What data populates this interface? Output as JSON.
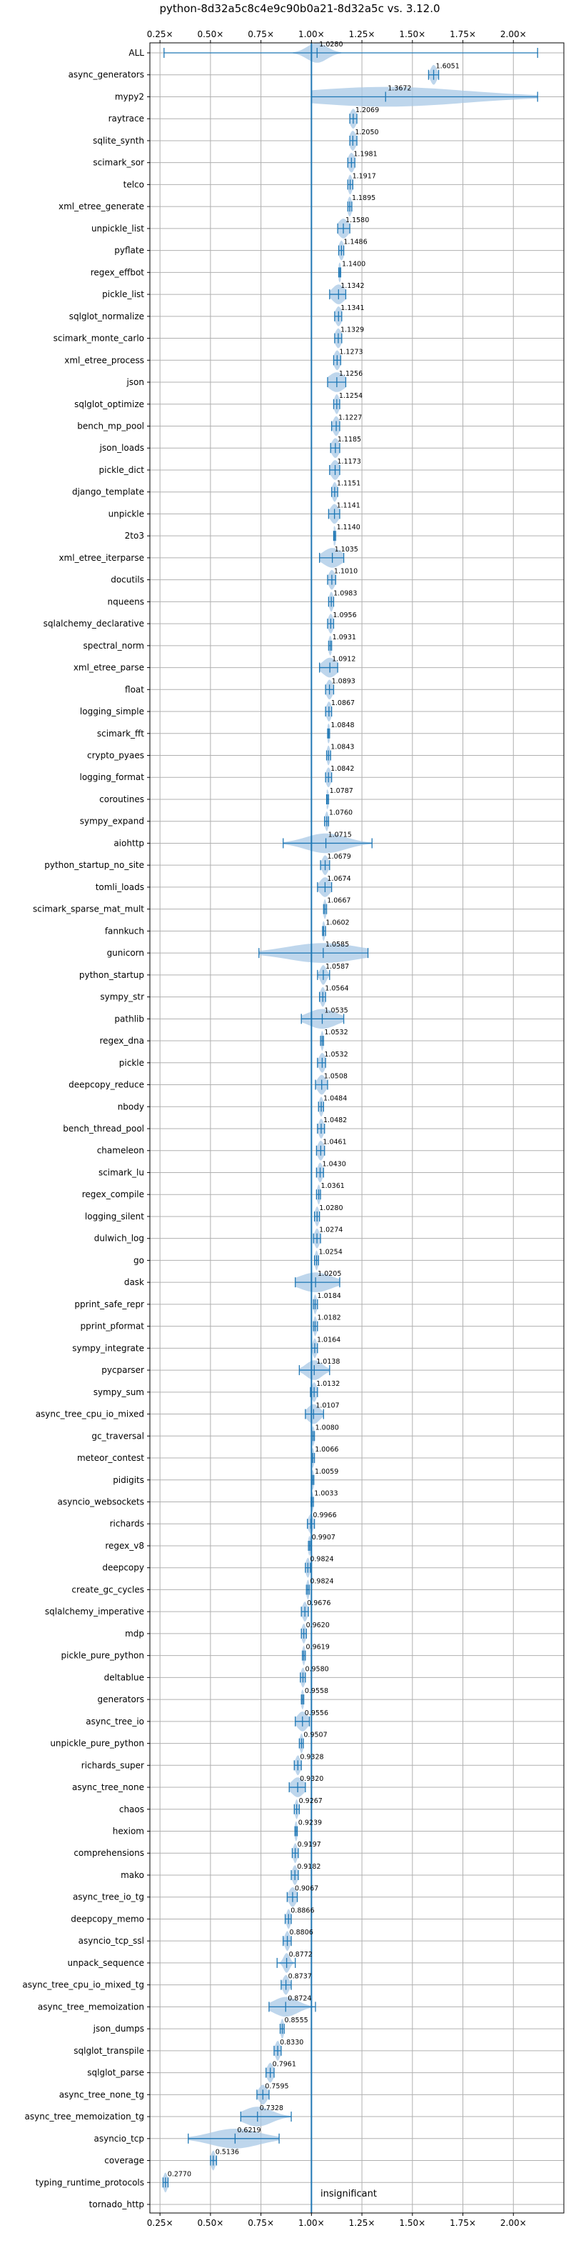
{
  "chart_data": {
    "type": "violin",
    "title": "python-8d32a5c8c4e9c90b0a21-8d32a5c vs. 3.12.0",
    "xlim": [
      0.2,
      2.25
    ],
    "x_ticks": [
      0.25,
      0.5,
      0.75,
      1.0,
      1.25,
      1.5,
      1.75,
      2.0
    ],
    "x_tick_labels": [
      "0.25×",
      "0.50×",
      "0.75×",
      "1.00×",
      "1.25×",
      "1.50×",
      "1.75×",
      "2.00×"
    ],
    "reference_line": 1.0,
    "annotation": "insignificant",
    "grid": true,
    "colors": {
      "accent": "#1f77b4",
      "violin_fill": "#a8c8e6",
      "grid": "#b0b0b0"
    },
    "benchmarks": [
      {
        "name": "ALL",
        "value": 1.028,
        "min": 0.27,
        "max": 2.12,
        "label": "1.0280",
        "spread": 0.05
      },
      {
        "name": "async_generators",
        "value": 1.6051,
        "min": 1.58,
        "max": 1.63,
        "label": "1.6051",
        "spread": 0.015
      },
      {
        "name": "mypy2",
        "value": 1.3672,
        "min": 1.0,
        "max": 2.12,
        "label": "1.3672",
        "spread": 0.4
      },
      {
        "name": "raytrace",
        "value": 1.2069,
        "min": 1.19,
        "max": 1.225,
        "label": "1.2069",
        "spread": 0.015
      },
      {
        "name": "sqlite_synth",
        "value": 1.205,
        "min": 1.19,
        "max": 1.225,
        "label": "1.2050",
        "spread": 0.015
      },
      {
        "name": "scimark_sor",
        "value": 1.1981,
        "min": 1.18,
        "max": 1.215,
        "label": "1.1981",
        "spread": 0.015
      },
      {
        "name": "telco",
        "value": 1.1917,
        "min": 1.18,
        "max": 1.205,
        "label": "1.1917",
        "spread": 0.01
      },
      {
        "name": "xml_etree_generate",
        "value": 1.1895,
        "min": 1.18,
        "max": 1.2,
        "label": "1.1895",
        "spread": 0.01
      },
      {
        "name": "unpickle_list",
        "value": 1.158,
        "min": 1.13,
        "max": 1.19,
        "label": "1.1580",
        "spread": 0.025
      },
      {
        "name": "pyflate",
        "value": 1.1486,
        "min": 1.135,
        "max": 1.16,
        "label": "1.1486",
        "spread": 0.012
      },
      {
        "name": "regex_effbot",
        "value": 1.14,
        "min": 1.135,
        "max": 1.145,
        "label": "1.1400",
        "spread": 0.006
      },
      {
        "name": "pickle_list",
        "value": 1.1342,
        "min": 1.09,
        "max": 1.17,
        "label": "1.1342",
        "spread": 0.03
      },
      {
        "name": "sqlglot_normalize",
        "value": 1.1341,
        "min": 1.115,
        "max": 1.15,
        "label": "1.1341",
        "spread": 0.015
      },
      {
        "name": "scimark_monte_carlo",
        "value": 1.1329,
        "min": 1.115,
        "max": 1.15,
        "label": "1.1329",
        "spread": 0.015
      },
      {
        "name": "xml_etree_process",
        "value": 1.1273,
        "min": 1.11,
        "max": 1.145,
        "label": "1.1273",
        "spread": 0.015
      },
      {
        "name": "json",
        "value": 1.1256,
        "min": 1.08,
        "max": 1.17,
        "label": "1.1256",
        "spread": 0.04
      },
      {
        "name": "sqlglot_optimize",
        "value": 1.1254,
        "min": 1.11,
        "max": 1.14,
        "label": "1.1254",
        "spread": 0.012
      },
      {
        "name": "bench_mp_pool",
        "value": 1.1227,
        "min": 1.1,
        "max": 1.14,
        "label": "1.1227",
        "spread": 0.015
      },
      {
        "name": "json_loads",
        "value": 1.1185,
        "min": 1.095,
        "max": 1.14,
        "label": "1.1185",
        "spread": 0.018
      },
      {
        "name": "pickle_dict",
        "value": 1.1173,
        "min": 1.09,
        "max": 1.14,
        "label": "1.1173",
        "spread": 0.02
      },
      {
        "name": "django_template",
        "value": 1.1151,
        "min": 1.1,
        "max": 1.13,
        "label": "1.1151",
        "spread": 0.012
      },
      {
        "name": "unpickle",
        "value": 1.1141,
        "min": 1.085,
        "max": 1.14,
        "label": "1.1141",
        "spread": 0.02
      },
      {
        "name": "2to3",
        "value": 1.114,
        "min": 1.11,
        "max": 1.12,
        "label": "1.1140",
        "spread": 0.006
      },
      {
        "name": "xml_etree_iterparse",
        "value": 1.1035,
        "min": 1.04,
        "max": 1.16,
        "label": "1.1035",
        "spread": 0.045
      },
      {
        "name": "docutils",
        "value": 1.101,
        "min": 1.08,
        "max": 1.12,
        "label": "1.1010",
        "spread": 0.015
      },
      {
        "name": "nqueens",
        "value": 1.0983,
        "min": 1.085,
        "max": 1.11,
        "label": "1.0983",
        "spread": 0.01
      },
      {
        "name": "sqlalchemy_declarative",
        "value": 1.0956,
        "min": 1.08,
        "max": 1.11,
        "label": "1.0956",
        "spread": 0.012
      },
      {
        "name": "spectral_norm",
        "value": 1.0931,
        "min": 1.085,
        "max": 1.1,
        "label": "1.0931",
        "spread": 0.008
      },
      {
        "name": "xml_etree_parse",
        "value": 1.0912,
        "min": 1.04,
        "max": 1.13,
        "label": "1.0912",
        "spread": 0.035
      },
      {
        "name": "float",
        "value": 1.0893,
        "min": 1.07,
        "max": 1.11,
        "label": "1.0893",
        "spread": 0.015
      },
      {
        "name": "logging_simple",
        "value": 1.0867,
        "min": 1.07,
        "max": 1.1,
        "label": "1.0867",
        "spread": 0.012
      },
      {
        "name": "scimark_fft",
        "value": 1.0848,
        "min": 1.08,
        "max": 1.09,
        "label": "1.0848",
        "spread": 0.006
      },
      {
        "name": "crypto_pyaes",
        "value": 1.0843,
        "min": 1.075,
        "max": 1.095,
        "label": "1.0843",
        "spread": 0.008
      },
      {
        "name": "logging_format",
        "value": 1.0842,
        "min": 1.07,
        "max": 1.1,
        "label": "1.0842",
        "spread": 0.012
      },
      {
        "name": "coroutines",
        "value": 1.0787,
        "min": 1.075,
        "max": 1.085,
        "label": "1.0787",
        "spread": 0.006
      },
      {
        "name": "sympy_expand",
        "value": 1.076,
        "min": 1.065,
        "max": 1.085,
        "label": "1.0760",
        "spread": 0.008
      },
      {
        "name": "aiohttp",
        "value": 1.0715,
        "min": 0.86,
        "max": 1.3,
        "label": "1.0715",
        "spread": 0.1
      },
      {
        "name": "python_startup_no_site",
        "value": 1.0679,
        "min": 1.045,
        "max": 1.09,
        "label": "1.0679",
        "spread": 0.015
      },
      {
        "name": "tomli_loads",
        "value": 1.0674,
        "min": 1.03,
        "max": 1.1,
        "label": "1.0674",
        "spread": 0.025
      },
      {
        "name": "scimark_sparse_mat_mult",
        "value": 1.0667,
        "min": 1.06,
        "max": 1.075,
        "label": "1.0667",
        "spread": 0.006
      },
      {
        "name": "fannkuch",
        "value": 1.0602,
        "min": 1.055,
        "max": 1.07,
        "label": "1.0602",
        "spread": 0.006
      },
      {
        "name": "gunicorn",
        "value": 1.0585,
        "min": 0.74,
        "max": 1.28,
        "label": "1.0585",
        "spread": 0.18
      },
      {
        "name": "python_startup",
        "value": 1.0587,
        "min": 1.03,
        "max": 1.09,
        "label": "1.0587",
        "spread": 0.015
      },
      {
        "name": "sympy_str",
        "value": 1.0564,
        "min": 1.04,
        "max": 1.07,
        "label": "1.0564",
        "spread": 0.012
      },
      {
        "name": "pathlib",
        "value": 1.0535,
        "min": 0.95,
        "max": 1.16,
        "label": "1.0535",
        "spread": 0.07
      },
      {
        "name": "regex_dna",
        "value": 1.0532,
        "min": 1.045,
        "max": 1.06,
        "label": "1.0532",
        "spread": 0.006
      },
      {
        "name": "pickle",
        "value": 1.0532,
        "min": 1.03,
        "max": 1.07,
        "label": "1.0532",
        "spread": 0.015
      },
      {
        "name": "deepcopy_reduce",
        "value": 1.0508,
        "min": 1.02,
        "max": 1.08,
        "label": "1.0508",
        "spread": 0.02
      },
      {
        "name": "nbody",
        "value": 1.0484,
        "min": 1.035,
        "max": 1.06,
        "label": "1.0484",
        "spread": 0.01
      },
      {
        "name": "bench_thread_pool",
        "value": 1.0482,
        "min": 1.03,
        "max": 1.065,
        "label": "1.0482",
        "spread": 0.012
      },
      {
        "name": "chameleon",
        "value": 1.0461,
        "min": 1.025,
        "max": 1.065,
        "label": "1.0461",
        "spread": 0.015
      },
      {
        "name": "scimark_lu",
        "value": 1.043,
        "min": 1.025,
        "max": 1.06,
        "label": "1.0430",
        "spread": 0.012
      },
      {
        "name": "regex_compile",
        "value": 1.0361,
        "min": 1.025,
        "max": 1.045,
        "label": "1.0361",
        "spread": 0.008
      },
      {
        "name": "logging_silent",
        "value": 1.028,
        "min": 1.015,
        "max": 1.04,
        "label": "1.0280",
        "spread": 0.01
      },
      {
        "name": "dulwich_log",
        "value": 1.0274,
        "min": 1.01,
        "max": 1.045,
        "label": "1.0274",
        "spread": 0.012
      },
      {
        "name": "go",
        "value": 1.0254,
        "min": 1.015,
        "max": 1.035,
        "label": "1.0254",
        "spread": 0.008
      },
      {
        "name": "dask",
        "value": 1.0205,
        "min": 0.92,
        "max": 1.14,
        "label": "1.0205",
        "spread": 0.08
      },
      {
        "name": "pprint_safe_repr",
        "value": 1.0184,
        "min": 1.01,
        "max": 1.03,
        "label": "1.0184",
        "spread": 0.008
      },
      {
        "name": "pprint_pformat",
        "value": 1.0182,
        "min": 1.01,
        "max": 1.03,
        "label": "1.0182",
        "spread": 0.008
      },
      {
        "name": "sympy_integrate",
        "value": 1.0164,
        "min": 1.0,
        "max": 1.03,
        "label": "1.0164",
        "spread": 0.01
      },
      {
        "name": "pycparser",
        "value": 1.0138,
        "min": 0.94,
        "max": 1.09,
        "label": "1.0138",
        "spread": 0.04
      },
      {
        "name": "sympy_sum",
        "value": 1.0132,
        "min": 0.995,
        "max": 1.03,
        "label": "1.0132",
        "spread": 0.012
      },
      {
        "name": "async_tree_cpu_io_mixed",
        "value": 1.0107,
        "min": 0.97,
        "max": 1.06,
        "label": "1.0107",
        "spread": 0.03
      },
      {
        "name": "gc_traversal",
        "value": 1.008,
        "min": 1.0,
        "max": 1.015,
        "label": "1.0080",
        "spread": 0.006
      },
      {
        "name": "meteor_contest",
        "value": 1.0066,
        "min": 1.0,
        "max": 1.015,
        "label": "1.0066",
        "spread": 0.006
      },
      {
        "name": "pidigits",
        "value": 1.0059,
        "min": 1.0,
        "max": 1.012,
        "label": "1.0059",
        "spread": 0.005
      },
      {
        "name": "asyncio_websockets",
        "value": 1.0033,
        "min": 0.998,
        "max": 1.01,
        "label": "1.0033",
        "spread": 0.005
      },
      {
        "name": "richards",
        "value": 0.9966,
        "min": 0.98,
        "max": 1.015,
        "label": "0.9966",
        "spread": 0.012
      },
      {
        "name": "regex_v8",
        "value": 0.9907,
        "min": 0.985,
        "max": 0.997,
        "label": "0.9907",
        "spread": 0.005
      },
      {
        "name": "deepcopy",
        "value": 0.9824,
        "min": 0.97,
        "max": 0.995,
        "label": "0.9824",
        "spread": 0.01
      },
      {
        "name": "create_gc_cycles",
        "value": 0.9824,
        "min": 0.975,
        "max": 0.99,
        "label": "0.9824",
        "spread": 0.006
      },
      {
        "name": "sqlalchemy_imperative",
        "value": 0.9676,
        "min": 0.95,
        "max": 0.985,
        "label": "0.9676",
        "spread": 0.012
      },
      {
        "name": "mdp",
        "value": 0.962,
        "min": 0.95,
        "max": 0.975,
        "label": "0.9620",
        "spread": 0.01
      },
      {
        "name": "pickle_pure_python",
        "value": 0.9619,
        "min": 0.955,
        "max": 0.97,
        "label": "0.9619",
        "spread": 0.006
      },
      {
        "name": "deltablue",
        "value": 0.958,
        "min": 0.945,
        "max": 0.97,
        "label": "0.9580",
        "spread": 0.01
      },
      {
        "name": "generators",
        "value": 0.9558,
        "min": 0.95,
        "max": 0.962,
        "label": "0.9558",
        "spread": 0.005
      },
      {
        "name": "async_tree_io",
        "value": 0.9556,
        "min": 0.92,
        "max": 0.99,
        "label": "0.9556",
        "spread": 0.025
      },
      {
        "name": "unpickle_pure_python",
        "value": 0.9507,
        "min": 0.94,
        "max": 0.96,
        "label": "0.9507",
        "spread": 0.008
      },
      {
        "name": "richards_super",
        "value": 0.9328,
        "min": 0.915,
        "max": 0.95,
        "label": "0.9328",
        "spread": 0.012
      },
      {
        "name": "async_tree_none",
        "value": 0.932,
        "min": 0.89,
        "max": 0.97,
        "label": "0.9320",
        "spread": 0.03
      },
      {
        "name": "chaos",
        "value": 0.9267,
        "min": 0.915,
        "max": 0.94,
        "label": "0.9267",
        "spread": 0.008
      },
      {
        "name": "hexiom",
        "value": 0.9239,
        "min": 0.918,
        "max": 0.93,
        "label": "0.9239",
        "spread": 0.005
      },
      {
        "name": "comprehensions",
        "value": 0.9197,
        "min": 0.905,
        "max": 0.935,
        "label": "0.9197",
        "spread": 0.01
      },
      {
        "name": "mako",
        "value": 0.9182,
        "min": 0.9,
        "max": 0.935,
        "label": "0.9182",
        "spread": 0.012
      },
      {
        "name": "async_tree_io_tg",
        "value": 0.9067,
        "min": 0.88,
        "max": 0.93,
        "label": "0.9067",
        "spread": 0.018
      },
      {
        "name": "deepcopy_memo",
        "value": 0.8866,
        "min": 0.87,
        "max": 0.9,
        "label": "0.8866",
        "spread": 0.01
      },
      {
        "name": "asyncio_tcp_ssl",
        "value": 0.8806,
        "min": 0.86,
        "max": 0.9,
        "label": "0.8806",
        "spread": 0.012
      },
      {
        "name": "unpack_sequence",
        "value": 0.8772,
        "min": 0.83,
        "max": 0.92,
        "label": "0.8772",
        "spread": 0.015
      },
      {
        "name": "async_tree_cpu_io_mixed_tg",
        "value": 0.8737,
        "min": 0.85,
        "max": 0.9,
        "label": "0.8737",
        "spread": 0.015
      },
      {
        "name": "async_tree_memoization",
        "value": 0.8724,
        "min": 0.79,
        "max": 1.02,
        "label": "0.8724",
        "spread": 0.06
      },
      {
        "name": "json_dumps",
        "value": 0.8555,
        "min": 0.845,
        "max": 0.865,
        "label": "0.8555",
        "spread": 0.008
      },
      {
        "name": "sqlglot_transpile",
        "value": 0.833,
        "min": 0.815,
        "max": 0.85,
        "label": "0.8330",
        "spread": 0.012
      },
      {
        "name": "sqlglot_parse",
        "value": 0.7961,
        "min": 0.775,
        "max": 0.815,
        "label": "0.7961",
        "spread": 0.015
      },
      {
        "name": "async_tree_none_tg",
        "value": 0.7595,
        "min": 0.73,
        "max": 0.79,
        "label": "0.7595",
        "spread": 0.02
      },
      {
        "name": "async_tree_memoization_tg",
        "value": 0.7328,
        "min": 0.65,
        "max": 0.9,
        "label": "0.7328",
        "spread": 0.07
      },
      {
        "name": "asyncio_tcp",
        "value": 0.6219,
        "min": 0.39,
        "max": 0.84,
        "label": "0.6219",
        "spread": 0.12
      },
      {
        "name": "coverage",
        "value": 0.5136,
        "min": 0.5,
        "max": 0.53,
        "label": "0.5136",
        "spread": 0.01
      },
      {
        "name": "typing_runtime_protocols",
        "value": 0.277,
        "min": 0.265,
        "max": 0.29,
        "label": "0.2770",
        "spread": 0.01
      },
      {
        "name": "tornado_http",
        "value": null,
        "min": null,
        "max": null,
        "label": "",
        "spread": 0
      }
    ]
  }
}
